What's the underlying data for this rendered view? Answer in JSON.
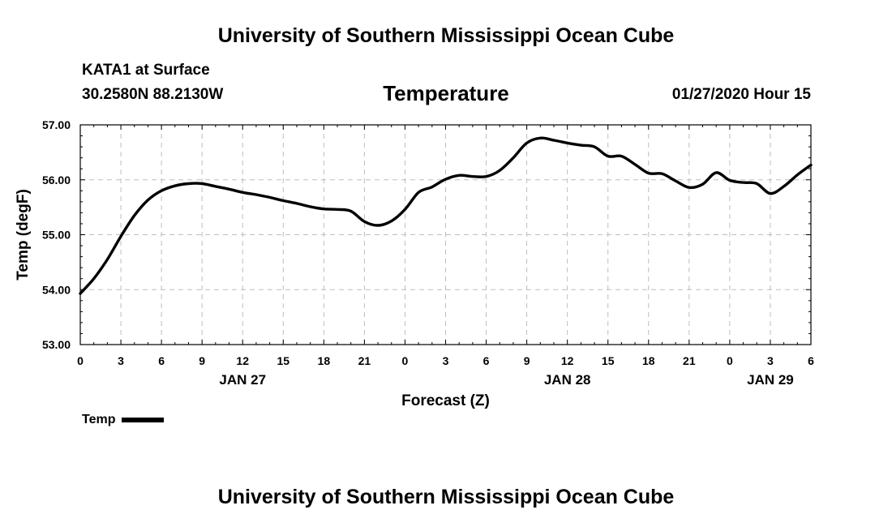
{
  "header": {
    "title": "University of Southern Mississippi Ocean Cube",
    "station": "KATA1 at Surface",
    "coords": "30.2580N 88.2130W",
    "datetime": "01/27/2020 Hour 15"
  },
  "footer": {
    "title": "University of Southern Mississippi Ocean Cube"
  },
  "legend": {
    "label": "Temp"
  },
  "chart_data": {
    "type": "line",
    "title": "Temperature",
    "xlabel": "Forecast (Z)",
    "ylabel": "Temp (degF)",
    "xlim": [
      0,
      54
    ],
    "ylim": [
      53,
      57
    ],
    "x_ticks": [
      0,
      3,
      6,
      9,
      12,
      15,
      18,
      21,
      24,
      27,
      30,
      33,
      36,
      39,
      42,
      45,
      48,
      51,
      54
    ],
    "x_tick_labels": [
      "0",
      "3",
      "6",
      "9",
      "12",
      "15",
      "18",
      "21",
      "0",
      "3",
      "6",
      "9",
      "12",
      "15",
      "18",
      "21",
      "0",
      "3",
      "6"
    ],
    "y_ticks": [
      53,
      54,
      55,
      56,
      57
    ],
    "y_tick_labels": [
      "53.00",
      "54.00",
      "55.00",
      "56.00",
      "57.00"
    ],
    "date_labels": [
      {
        "x": 12,
        "label": "JAN 27"
      },
      {
        "x": 36,
        "label": "JAN 28"
      },
      {
        "x": 51,
        "label": "JAN 29"
      }
    ],
    "grid": true,
    "series": [
      {
        "name": "Temp",
        "color": "#000000",
        "x": [
          0,
          1,
          2,
          3,
          4,
          5,
          6,
          7,
          8,
          9,
          10,
          11,
          12,
          13,
          14,
          15,
          16,
          17,
          18,
          19,
          20,
          21,
          22,
          23,
          24,
          25,
          26,
          27,
          28,
          29,
          30,
          31,
          32,
          33,
          34,
          35,
          36,
          37,
          38,
          39,
          40,
          41,
          42,
          43,
          44,
          45,
          46,
          47,
          48,
          49,
          50,
          51,
          52,
          53,
          54
        ],
        "values": [
          53.93,
          54.2,
          54.55,
          54.97,
          55.35,
          55.63,
          55.8,
          55.89,
          55.93,
          55.93,
          55.88,
          55.83,
          55.77,
          55.73,
          55.68,
          55.62,
          55.57,
          55.51,
          55.47,
          55.46,
          55.43,
          55.24,
          55.17,
          55.25,
          55.46,
          55.77,
          55.87,
          56.01,
          56.08,
          56.06,
          56.06,
          56.17,
          56.4,
          56.67,
          56.76,
          56.72,
          56.67,
          56.63,
          56.6,
          56.43,
          56.43,
          56.28,
          56.12,
          56.11,
          55.98,
          55.86,
          55.92,
          56.13,
          55.99,
          55.95,
          55.93,
          55.75,
          55.88,
          56.09,
          56.27
        ]
      }
    ]
  }
}
